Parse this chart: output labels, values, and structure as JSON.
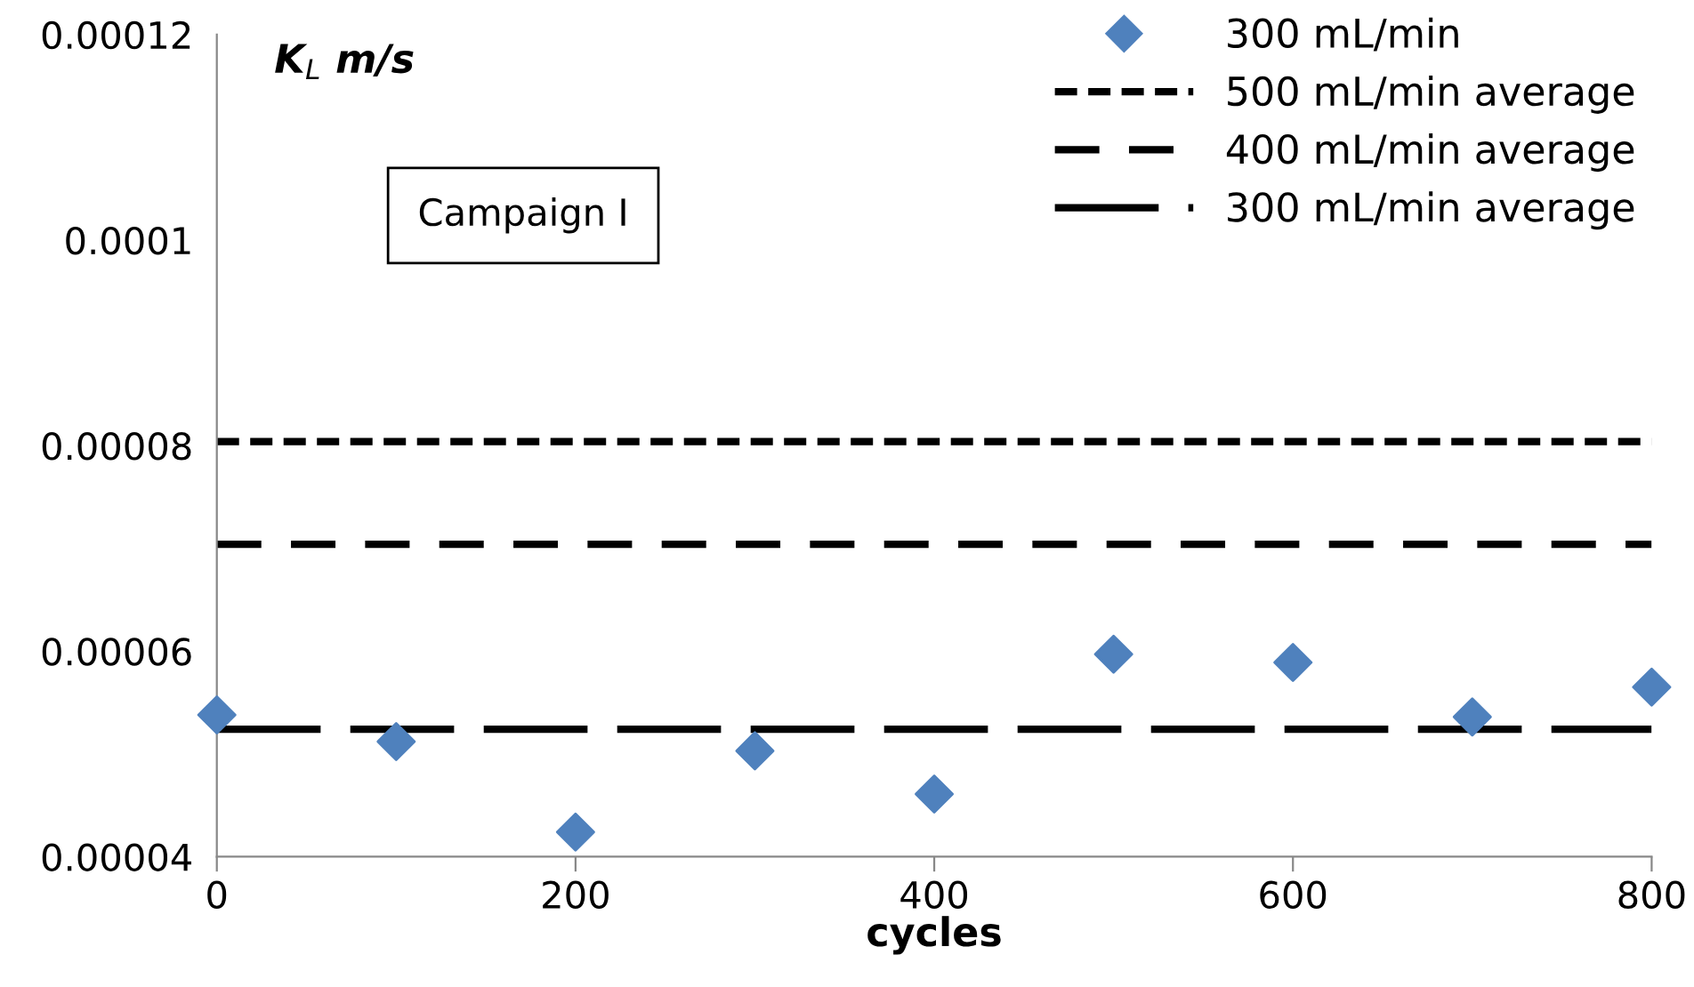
{
  "chart_data": {
    "type": "scatter",
    "xlabel": "cycles",
    "ylabel": "K$_{L}$ m/s",
    "x": [
      0,
      100,
      200,
      300,
      400,
      500,
      600,
      700,
      800
    ],
    "series": [
      {
        "name": "300 mL/min",
        "color": "#4f81bd",
        "values": [
          5.38e-05,
          5.12e-05,
          4.24e-05,
          5.03e-05,
          4.61e-05,
          5.97e-05,
          5.89e-05,
          5.36e-05,
          5.65e-05
        ]
      }
    ],
    "ref_lines": [
      {
        "axis": "y",
        "value": 8.04e-05,
        "label": "500 mL/min average",
        "color": "#000000",
        "line_style": "dotted"
      },
      {
        "axis": "y",
        "value": 7.04e-05,
        "label": "400 mL/min average",
        "color": "#000000",
        "line_style": "dashed"
      },
      {
        "axis": "y",
        "value": 5.24e-05,
        "label": "300 mL/min average",
        "color": "#000000",
        "line_style": "longdash"
      }
    ],
    "annotations": [
      "Campaign I"
    ],
    "xlim": [
      0,
      800
    ],
    "xticks": [
      0,
      200,
      400,
      600,
      800
    ],
    "ylim": [
      4e-05,
      0.00012
    ],
    "yticks": [
      {
        "value": 4e-05,
        "label": "0.00004"
      },
      {
        "value": 6e-05,
        "label": "0.00006"
      },
      {
        "value": 8e-05,
        "label": "0.00008"
      },
      {
        "value": 0.0001,
        "label": "0.0001"
      },
      {
        "value": 0.00012,
        "label": "0.00012"
      }
    ],
    "marker": "diamond",
    "grid": false,
    "legend": "top right"
  }
}
